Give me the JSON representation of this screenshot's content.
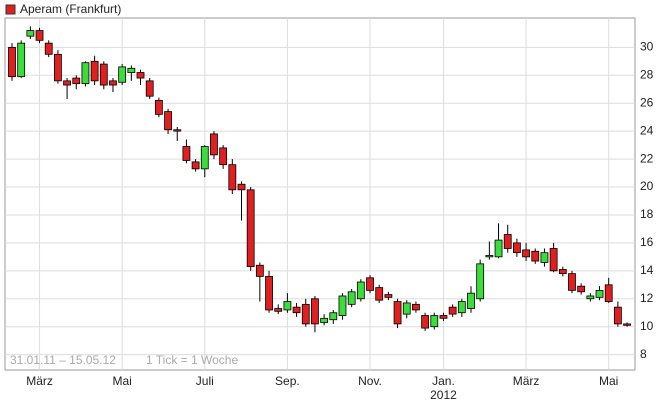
{
  "chart_data": {
    "type": "candlestick",
    "legend": "Aperam (Frankfurt)",
    "up_color": "#3ddc3d",
    "down_color": "#e02020",
    "categories": [
      null,
      null,
      null,
      "März",
      null,
      null,
      null,
      null,
      null,
      null,
      null,
      null,
      "Mai",
      null,
      null,
      null,
      null,
      null,
      null,
      null,
      null,
      "Juli",
      null,
      null,
      null,
      null,
      null,
      null,
      null,
      null,
      "Sep.",
      null,
      null,
      null,
      null,
      null,
      null,
      null,
      null,
      "Nov.",
      null,
      null,
      null,
      null,
      null,
      null,
      null,
      "Jan.",
      null,
      null,
      null,
      null,
      null,
      null,
      null,
      null,
      "März",
      null,
      null,
      null,
      null,
      null,
      null,
      null,
      null,
      "Mai",
      null,
      null
    ],
    "year_label": "2012",
    "open": [
      30,
      27.9,
      30.8,
      31.2,
      30.3,
      29.5,
      27.6,
      27.8,
      27.4,
      29,
      28.8,
      27.6,
      27.5,
      28.2,
      28.2,
      27.6,
      26.2,
      25.4,
      24.1,
      22.9,
      21.8,
      21.3,
      23.8,
      22.8,
      21.6,
      20.2,
      19.8,
      14.4,
      13.6,
      11.3,
      11.2,
      11.4,
      11.6,
      12,
      10.3,
      10.5,
      10.8,
      11.6,
      12,
      13.5,
      12.8,
      12.3,
      11.8,
      10.9,
      11.6,
      10.8,
      10,
      10.8,
      11.4,
      11,
      11.3,
      12,
      15,
      15,
      16.6,
      16,
      15.5,
      15.4,
      14.6,
      15.6,
      14.1,
      13.8,
      12.9,
      12,
      12.1,
      13,
      11.4,
      10.2
    ],
    "high": [
      30.3,
      30.5,
      31.5,
      31.4,
      30.5,
      29.8,
      27.8,
      28,
      29,
      29.4,
      29,
      27.8,
      28.8,
      28.7,
      28.4,
      27.8,
      26.4,
      25.6,
      24.3,
      23.4,
      22,
      23,
      24,
      23,
      22,
      20.4,
      20,
      14.6,
      14,
      11.6,
      12.4,
      11.7,
      12,
      12.2,
      10.9,
      11.2,
      12.4,
      12.7,
      13.4,
      13.7,
      13,
      12.5,
      12,
      11.9,
      11.8,
      11,
      11,
      11,
      11.6,
      12,
      12.9,
      14.8,
      16.1,
      17.4,
      17.3,
      16.3,
      16,
      15.6,
      15.6,
      16,
      14.3,
      14,
      13.1,
      12.4,
      12.9,
      13.5,
      11.8,
      10.3
    ],
    "low": [
      27.6,
      27.8,
      30.6,
      30.3,
      29.3,
      27.4,
      26.3,
      27,
      27.2,
      27.3,
      27,
      26.8,
      27.3,
      27.6,
      27.3,
      26.3,
      25,
      23.8,
      23.3,
      21.7,
      21.1,
      20.7,
      22,
      21.3,
      19.5,
      17.6,
      14,
      11.8,
      11,
      10.9,
      11,
      10.7,
      10,
      9.6,
      10.1,
      10.2,
      10.5,
      11.4,
      11.8,
      12.4,
      11.7,
      11.9,
      9.9,
      10.6,
      11,
      9.7,
      9.8,
      10.4,
      10.7,
      10.7,
      11,
      11.8,
      14.8,
      14.9,
      15.3,
      15,
      14.7,
      14.5,
      14.3,
      13.9,
      13.6,
      12.4,
      12.3,
      11.8,
      11.9,
      11.7,
      10,
      10
    ],
    "close": [
      27.9,
      30.3,
      31.2,
      30.5,
      29.5,
      27.6,
      27.3,
      27.4,
      28.9,
      27.6,
      27.3,
      27.3,
      28.6,
      28.5,
      27.8,
      26.5,
      25.2,
      24.1,
      24,
      21.9,
      21.3,
      22.9,
      22.3,
      21.6,
      19.8,
      19.8,
      14.3,
      13.6,
      11.2,
      11.1,
      11.8,
      11,
      10.2,
      10.2,
      10.6,
      11,
      12.2,
      12.5,
      13.2,
      12.6,
      11.9,
      12.1,
      10.2,
      11.7,
      11.2,
      9.9,
      10.8,
      10.6,
      10.9,
      11.8,
      12.4,
      14.5,
      15.1,
      16.2,
      15.6,
      15.3,
      15,
      14.7,
      15.3,
      14,
      13.8,
      12.6,
      12.5,
      12.2,
      12.6,
      11.8,
      10.2,
      10.1
    ],
    "ylim": [
      6.9,
      32.1
    ],
    "yticks": [
      8,
      10,
      12,
      14,
      16,
      18,
      20,
      22,
      24,
      26,
      28,
      30
    ],
    "grid": true,
    "range_label": "31.01.11 – 15.05.12",
    "tick_label": "1 Tick = 1 Woche"
  }
}
